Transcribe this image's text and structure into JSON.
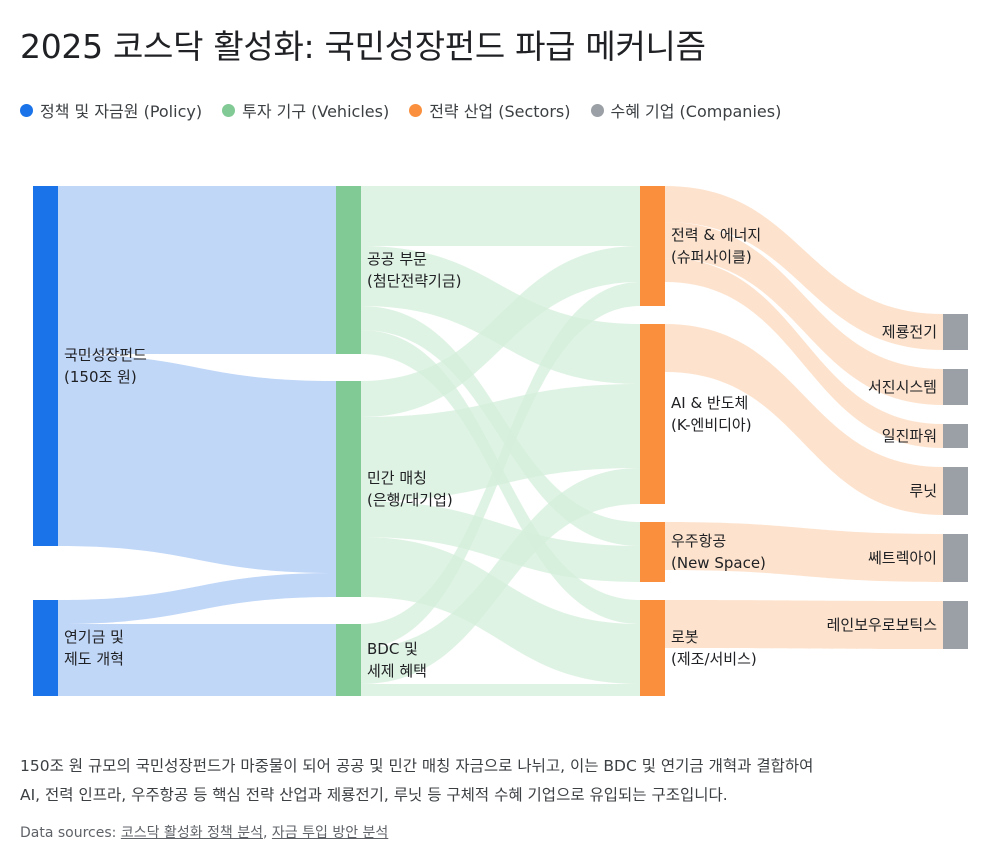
{
  "title": "2025 코스닥 활성화: 국민성장펀드 파급 메커니즘",
  "legend": [
    {
      "label": "정책 및 자금원 (Policy)",
      "color": "#1a73e8"
    },
    {
      "label": "투자 기구 (Vehicles)",
      "color": "#81c995"
    },
    {
      "label": "전략 산업 (Sectors)",
      "color": "#fa903e"
    },
    {
      "label": "수혜 기업 (Companies)",
      "color": "#9aa0a6"
    }
  ],
  "colors": {
    "policy_node": "#1a73e8",
    "policy_link": "#b9d3f7",
    "vehicle_node": "#81c995",
    "vehicle_link": "#d4efdb",
    "sector_node": "#fa903e",
    "sector_link": "#fde0c9",
    "company_node": "#9aa0a6"
  },
  "sankey": {
    "nodes": [
      {
        "id": "fund",
        "lines": [
          "국민성장펀드",
          "(150조 원)"
        ],
        "col": 0
      },
      {
        "id": "pension",
        "lines": [
          "연기금 및",
          "제도 개혁"
        ],
        "col": 0
      },
      {
        "id": "public",
        "lines": [
          "공공 부문",
          "(첨단전략기금)"
        ],
        "col": 1
      },
      {
        "id": "private",
        "lines": [
          "민간 매칭",
          "(은행/대기업)"
        ],
        "col": 1
      },
      {
        "id": "bdc",
        "lines": [
          "BDC 및",
          "세제 혜택"
        ],
        "col": 1
      },
      {
        "id": "energy",
        "lines": [
          "전력 & 에너지",
          "(슈퍼사이클)"
        ],
        "col": 2
      },
      {
        "id": "ai",
        "lines": [
          "AI & 반도체",
          "(K-엔비디아)"
        ],
        "col": 2
      },
      {
        "id": "space",
        "lines": [
          "우주항공",
          "(New Space)"
        ],
        "col": 2
      },
      {
        "id": "robot",
        "lines": [
          "로봇",
          "(제조/서비스)"
        ],
        "col": 2
      },
      {
        "id": "jeryong",
        "lines": [
          "제룡전기"
        ],
        "col": 3
      },
      {
        "id": "seojin",
        "lines": [
          "서진시스템"
        ],
        "col": 3
      },
      {
        "id": "iljin",
        "lines": [
          "일진파워"
        ],
        "col": 3
      },
      {
        "id": "lunit",
        "lines": [
          "루닛"
        ],
        "col": 3
      },
      {
        "id": "satrec",
        "lines": [
          "쎄트렉아이"
        ],
        "col": 3
      },
      {
        "id": "rainbow",
        "lines": [
          "레인보우로보틱스"
        ],
        "col": 3
      }
    ],
    "links": [
      {
        "source": "fund",
        "target": "public",
        "value": 70
      },
      {
        "source": "fund",
        "target": "private",
        "value": 80
      },
      {
        "source": "pension",
        "target": "private",
        "value": 10
      },
      {
        "source": "pension",
        "target": "bdc",
        "value": 30
      },
      {
        "source": "public",
        "target": "energy",
        "value": 25
      },
      {
        "source": "public",
        "target": "ai",
        "value": 25
      },
      {
        "source": "public",
        "target": "space",
        "value": 10
      },
      {
        "source": "public",
        "target": "robot",
        "value": 10
      },
      {
        "source": "private",
        "target": "energy",
        "value": 15
      },
      {
        "source": "private",
        "target": "ai",
        "value": 35
      },
      {
        "source": "private",
        "target": "space",
        "value": 15
      },
      {
        "source": "private",
        "target": "robot",
        "value": 25
      },
      {
        "source": "bdc",
        "target": "energy",
        "value": 10
      },
      {
        "source": "bdc",
        "target": "ai",
        "value": 15
      },
      {
        "source": "bdc",
        "target": "robot",
        "value": 5
      },
      {
        "source": "energy",
        "target": "jeryong",
        "value": 15
      },
      {
        "source": "energy",
        "target": "seojin",
        "value": 15
      },
      {
        "source": "energy",
        "target": "iljin",
        "value": 10
      },
      {
        "source": "ai",
        "target": "lunit",
        "value": 20
      },
      {
        "source": "space",
        "target": "satrec",
        "value": 20
      },
      {
        "source": "robot",
        "target": "rainbow",
        "value": 20
      }
    ]
  },
  "caption": [
    "150조 원 규모의 국민성장펀드가 마중물이 되어 공공 및 민간 매칭 자금으로 나뉘고, 이는 BDC 및 연기금 개혁과 결합하여",
    "AI, 전력 인프라, 우주항공 등 핵심 전략 산업과 제룡전기, 루닛 등 구체적 수혜 기업으로 유입되는 구조입니다."
  ],
  "sources": {
    "prefix": "Data sources: ",
    "links": [
      "코스닥 활성화 정책 분석",
      "자금 투입 방안 분석"
    ],
    "separator": ", "
  }
}
